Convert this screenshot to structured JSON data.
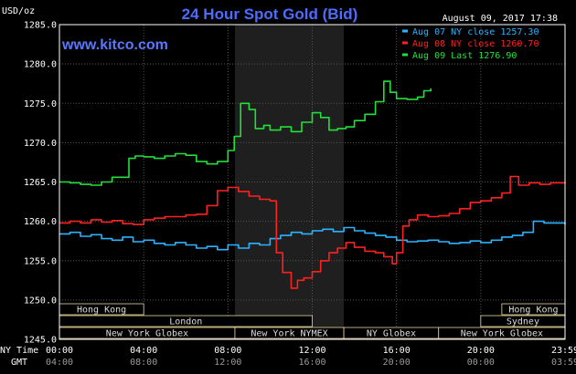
{
  "chart_data": {
    "type": "line",
    "title": "24 Hour Spot Gold (Bid)",
    "unit_label": "USD/oz",
    "site": "www.kitco.com",
    "timestamp": "August 09, 2017 17:38",
    "ylim": [
      1245,
      1285
    ],
    "yticks": [
      "1285.0",
      "1280.0",
      "1275.0",
      "1270.0",
      "1265.0",
      "1260.0",
      "1255.0",
      "1250.0",
      "1245.0"
    ],
    "x_hours": [
      0,
      24
    ],
    "x_ticks": [
      {
        "h": 0,
        "ny": "00:00",
        "gmt": "04:00"
      },
      {
        "h": 4,
        "ny": "04:00",
        "gmt": "08:00"
      },
      {
        "h": 8,
        "ny": "08:00",
        "gmt": "12:00"
      },
      {
        "h": 12,
        "ny": "12:00",
        "gmt": "16:00"
      },
      {
        "h": 16,
        "ny": "16:00",
        "gmt": "20:00"
      },
      {
        "h": 20,
        "ny": "20:00",
        "gmt": "00:00"
      },
      {
        "h": 24,
        "ny": "23:59",
        "gmt": "03:59"
      }
    ],
    "row_labels": {
      "ny": "NY Time",
      "gmt": "GMT"
    },
    "nymex_shading_hours": [
      8.33,
      13.5
    ],
    "legend_position": "top-right",
    "series": [
      {
        "name": "Aug 07 NY close 1257.30",
        "color": "#2ab4ff",
        "points": [
          [
            0,
            1258.4
          ],
          [
            0.5,
            1258.6
          ],
          [
            1,
            1258.1
          ],
          [
            1.5,
            1258.3
          ],
          [
            2,
            1257.8
          ],
          [
            2.5,
            1257.6
          ],
          [
            3,
            1258.0
          ],
          [
            3.5,
            1257.4
          ],
          [
            4,
            1257.6
          ],
          [
            4.5,
            1257.2
          ],
          [
            5,
            1257.0
          ],
          [
            5.5,
            1257.3
          ],
          [
            6,
            1257.0
          ],
          [
            6.5,
            1256.6
          ],
          [
            7,
            1256.8
          ],
          [
            7.5,
            1256.4
          ],
          [
            8,
            1257.0
          ],
          [
            8.5,
            1256.6
          ],
          [
            9,
            1257.2
          ],
          [
            9.5,
            1257.0
          ],
          [
            10,
            1257.8
          ],
          [
            10.5,
            1258.2
          ],
          [
            11,
            1258.6
          ],
          [
            11.5,
            1258.4
          ],
          [
            12,
            1258.8
          ],
          [
            12.5,
            1259.0
          ],
          [
            13,
            1258.7
          ],
          [
            13.5,
            1259.2
          ],
          [
            14,
            1258.8
          ],
          [
            14.5,
            1258.5
          ],
          [
            15,
            1258.2
          ],
          [
            15.5,
            1258.0
          ],
          [
            16,
            1257.6
          ],
          [
            16.5,
            1257.4
          ],
          [
            17,
            1257.5
          ],
          [
            17.5,
            1257.6
          ],
          [
            18,
            1257.4
          ],
          [
            18.5,
            1257.2
          ],
          [
            19,
            1257.3
          ],
          [
            19.5,
            1257.5
          ],
          [
            20,
            1257.3
          ],
          [
            20.5,
            1257.6
          ],
          [
            21,
            1258.0
          ],
          [
            21.5,
            1258.2
          ],
          [
            22,
            1258.6
          ],
          [
            22.5,
            1260.0
          ],
          [
            23,
            1259.8
          ],
          [
            23.5,
            1259.8
          ],
          [
            24,
            1259.6
          ]
        ]
      },
      {
        "name": "Aug 08 NY close 1260.70",
        "color": "#ff2020",
        "points": [
          [
            0,
            1259.8
          ],
          [
            0.5,
            1260.0
          ],
          [
            1,
            1259.8
          ],
          [
            1.5,
            1260.2
          ],
          [
            2,
            1259.9
          ],
          [
            2.5,
            1260.1
          ],
          [
            3,
            1259.7
          ],
          [
            3.5,
            1259.6
          ],
          [
            4,
            1260.2
          ],
          [
            4.5,
            1260.4
          ],
          [
            5,
            1260.6
          ],
          [
            5.5,
            1260.6
          ],
          [
            6,
            1260.8
          ],
          [
            6.5,
            1260.9
          ],
          [
            7,
            1262.0
          ],
          [
            7.5,
            1263.9
          ],
          [
            8,
            1264.3
          ],
          [
            8.5,
            1263.8
          ],
          [
            9,
            1263.2
          ],
          [
            9.5,
            1262.8
          ],
          [
            10,
            1262.6
          ],
          [
            10.3,
            1256.0
          ],
          [
            10.6,
            1253.5
          ],
          [
            11,
            1251.5
          ],
          [
            11.3,
            1252.5
          ],
          [
            11.6,
            1252.8
          ],
          [
            12,
            1253.6
          ],
          [
            12.4,
            1255.0
          ],
          [
            12.8,
            1256.0
          ],
          [
            13.2,
            1256.6
          ],
          [
            13.6,
            1257.3
          ],
          [
            14,
            1256.7
          ],
          [
            14.5,
            1256.2
          ],
          [
            15,
            1256.0
          ],
          [
            15.4,
            1255.5
          ],
          [
            15.8,
            1254.6
          ],
          [
            16,
            1256.0
          ],
          [
            16.3,
            1259.4
          ],
          [
            16.6,
            1260.2
          ],
          [
            17,
            1260.8
          ],
          [
            17.5,
            1260.6
          ],
          [
            18,
            1260.7
          ],
          [
            18.5,
            1261.0
          ],
          [
            19,
            1261.6
          ],
          [
            19.5,
            1262.4
          ],
          [
            20,
            1262.6
          ],
          [
            20.5,
            1263.0
          ],
          [
            21,
            1263.6
          ],
          [
            21.4,
            1265.7
          ],
          [
            21.8,
            1264.6
          ],
          [
            22.3,
            1264.9
          ],
          [
            22.8,
            1264.7
          ],
          [
            23.3,
            1264.9
          ],
          [
            24,
            1265.0
          ]
        ]
      },
      {
        "name": "Aug 09 Last 1276.90",
        "color": "#22e03a",
        "points": [
          [
            0,
            1265.0
          ],
          [
            0.5,
            1264.9
          ],
          [
            1,
            1264.7
          ],
          [
            1.5,
            1264.6
          ],
          [
            2,
            1265.0
          ],
          [
            2.5,
            1265.6
          ],
          [
            3,
            1265.6
          ],
          [
            3.3,
            1268.0
          ],
          [
            3.6,
            1268.3
          ],
          [
            4,
            1268.2
          ],
          [
            4.5,
            1268.0
          ],
          [
            5,
            1268.3
          ],
          [
            5.5,
            1268.6
          ],
          [
            6,
            1268.4
          ],
          [
            6.5,
            1267.6
          ],
          [
            7,
            1267.3
          ],
          [
            7.5,
            1267.6
          ],
          [
            8,
            1269.0
          ],
          [
            8.3,
            1270.8
          ],
          [
            8.6,
            1275.0
          ],
          [
            9,
            1274.2
          ],
          [
            9.3,
            1271.8
          ],
          [
            9.7,
            1272.2
          ],
          [
            10,
            1271.6
          ],
          [
            10.5,
            1272.0
          ],
          [
            11,
            1271.4
          ],
          [
            11.5,
            1272.6
          ],
          [
            12,
            1273.8
          ],
          [
            12.4,
            1273.2
          ],
          [
            12.8,
            1271.6
          ],
          [
            13.2,
            1271.8
          ],
          [
            13.6,
            1272.0
          ],
          [
            14,
            1272.8
          ],
          [
            14.5,
            1273.6
          ],
          [
            15,
            1275.2
          ],
          [
            15.4,
            1277.8
          ],
          [
            15.7,
            1276.4
          ],
          [
            16,
            1275.6
          ],
          [
            16.5,
            1275.5
          ],
          [
            17,
            1275.8
          ],
          [
            17.3,
            1276.6
          ],
          [
            17.63,
            1276.9
          ]
        ]
      }
    ],
    "sessions": {
      "row1": [
        {
          "label": "Hong Kong",
          "start": 0,
          "end": 4.0
        },
        {
          "label": "Hong Kong",
          "start": 21.0,
          "end": 24
        }
      ],
      "row2": [
        {
          "label": "London",
          "start": 0,
          "end": 12.0
        },
        {
          "label": "Sydney",
          "start": 20.0,
          "end": 24
        }
      ],
      "row3": [
        {
          "label": "New York Globex",
          "start": 0,
          "end": 8.33
        },
        {
          "label": "New York NYMEX",
          "start": 8.33,
          "end": 13.5
        },
        {
          "label": "NY Globex",
          "start": 13.5,
          "end": 18.0
        },
        {
          "label": "New York Globex",
          "start": 18.0,
          "end": 24
        }
      ]
    }
  }
}
